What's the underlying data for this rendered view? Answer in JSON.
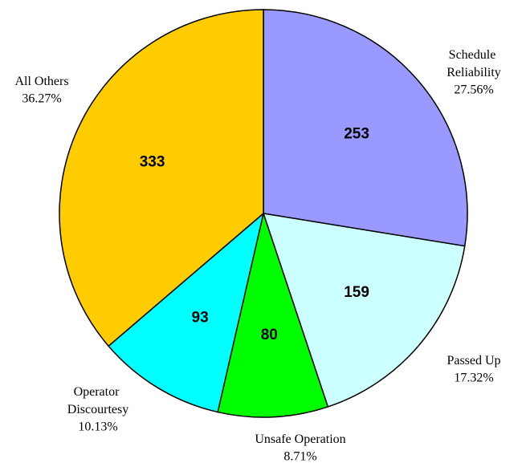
{
  "chart_data": {
    "type": "pie",
    "categories": [
      "Schedule Reliability",
      "Passed Up",
      "Unsafe Operation",
      "Operator Discourtesy",
      "All Others"
    ],
    "values": [
      253,
      159,
      80,
      93,
      333
    ],
    "percent_labels": [
      "27.56%",
      "17.32%",
      "8.71%",
      "10.13%",
      "36.27%"
    ],
    "colors": [
      "#9999ff",
      "#ccffff",
      "#00ff00",
      "#00ffff",
      "#ffcc00"
    ]
  }
}
